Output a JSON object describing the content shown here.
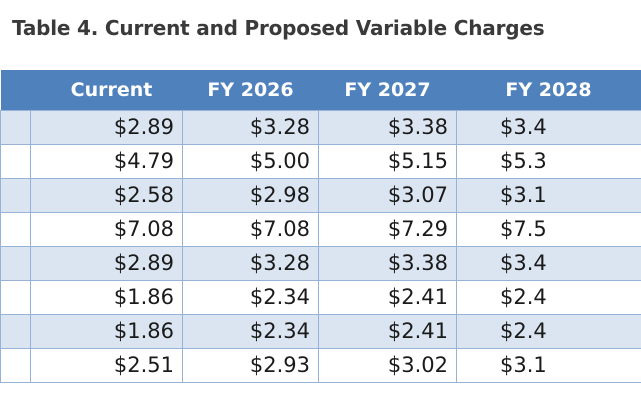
{
  "title": "Table 4. Current and Proposed Variable Charges",
  "columns": [
    "Current",
    "FY 2026",
    "FY 2027",
    "FY 2028"
  ],
  "rows": [
    [
      "$2.89",
      "$3.28",
      "$3.38",
      "$3.4"
    ],
    [
      "$4.79",
      "$5.00",
      "$5.15",
      "$5.3"
    ],
    [
      "$2.58",
      "$2.98",
      "$3.07",
      "$3.1"
    ],
    [
      "$7.08",
      "$7.08",
      "$7.29",
      "$7.5"
    ],
    [
      "$2.89",
      "$3.28",
      "$3.38",
      "$3.4"
    ],
    [
      "$1.86",
      "$2.34",
      "$2.41",
      "$2.4"
    ],
    [
      "$1.86",
      "$2.34",
      "$2.41",
      "$2.4"
    ],
    [
      "$2.51",
      "$2.93",
      "$3.02",
      "$3.1"
    ]
  ],
  "colors": {
    "header_bg": "#4f81bd",
    "stripe_bg": "#dbe5f1",
    "border": "#95b3d7",
    "title_text": "#3a3a3a"
  }
}
